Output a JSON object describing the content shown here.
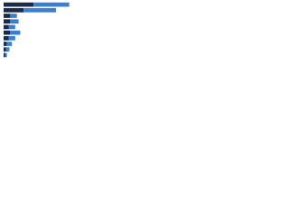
{
  "chart_data": {
    "type": "bar",
    "orientation": "horizontal",
    "stacked": true,
    "categories": [
      null,
      null,
      null,
      null,
      null,
      null,
      null,
      null,
      null,
      null
    ],
    "series": [
      {
        "color": "#1b2a47",
        "values": [
          36,
          24,
          8,
          8,
          6,
          8,
          6,
          4,
          3,
          2
        ]
      },
      {
        "color": "#3b7fd4",
        "values": [
          43,
          39,
          8,
          10,
          8,
          12,
          8,
          6,
          4,
          2
        ]
      }
    ],
    "xlim": [
      0,
      100
    ]
  }
}
